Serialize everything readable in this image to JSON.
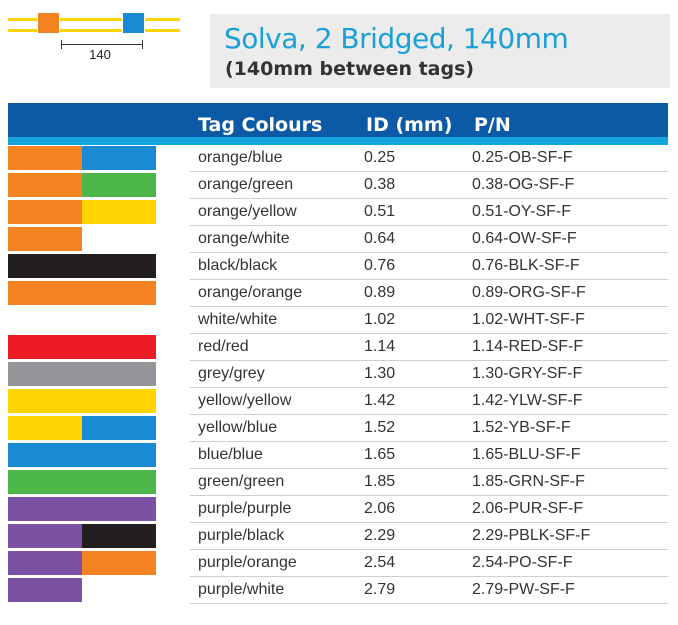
{
  "diagram": {
    "dimension_label": "140",
    "tag_colors": [
      "#f58220",
      "#1a8ad4"
    ],
    "rail_color": "#ffd400"
  },
  "title": {
    "main": "Solva, 2 Bridged, 140mm",
    "sub": "(140mm between tags)"
  },
  "table": {
    "headers": {
      "tag_colours": "Tag Colours",
      "id": "ID (mm)",
      "pn": "P/N"
    },
    "rows": [
      {
        "name": "orange/blue",
        "id": "0.25",
        "pn": "0.25-OB-SF-F",
        "c1": "#f58220",
        "c2": "#1a8ad4"
      },
      {
        "name": "orange/green",
        "id": "0.38",
        "pn": "0.38-OG-SF-F",
        "c1": "#f58220",
        "c2": "#4cb748"
      },
      {
        "name": "orange/yellow",
        "id": "0.51",
        "pn": "0.51-OY-SF-F",
        "c1": "#f58220",
        "c2": "#ffd400"
      },
      {
        "name": "orange/white",
        "id": "0.64",
        "pn": "0.64-OW-SF-F",
        "c1": "#f58220",
        "c2": "#ffffff"
      },
      {
        "name": "black/black",
        "id": "0.76",
        "pn": "0.76-BLK-SF-F",
        "c1": "#231f20",
        "c2": "#231f20"
      },
      {
        "name": "orange/orange",
        "id": "0.89",
        "pn": "0.89-ORG-SF-F",
        "c1": "#f58220",
        "c2": "#f58220"
      },
      {
        "name": "white/white",
        "id": "1.02",
        "pn": "1.02-WHT-SF-F",
        "c1": "#ffffff",
        "c2": "#ffffff"
      },
      {
        "name": "red/red",
        "id": "1.14",
        "pn": "1.14-RED-SF-F",
        "c1": "#ed1c24",
        "c2": "#ed1c24"
      },
      {
        "name": "grey/grey",
        "id": "1.30",
        "pn": "1.30-GRY-SF-F",
        "c1": "#939598",
        "c2": "#939598"
      },
      {
        "name": "yellow/yellow",
        "id": "1.42",
        "pn": "1.42-YLW-SF-F",
        "c1": "#ffd400",
        "c2": "#ffd400"
      },
      {
        "name": "yellow/blue",
        "id": "1.52",
        "pn": "1.52-YB-SF-F",
        "c1": "#ffd400",
        "c2": "#1a8ad4"
      },
      {
        "name": "blue/blue",
        "id": "1.65",
        "pn": "1.65-BLU-SF-F",
        "c1": "#1a8ad4",
        "c2": "#1a8ad4"
      },
      {
        "name": "green/green",
        "id": "1.85",
        "pn": "1.85-GRN-SF-F",
        "c1": "#4cb748",
        "c2": "#4cb748"
      },
      {
        "name": "purple/purple",
        "id": "2.06",
        "pn": "2.06-PUR-SF-F",
        "c1": "#7a52a1",
        "c2": "#7a52a1"
      },
      {
        "name": "purple/black",
        "id": "2.29",
        "pn": "2.29-PBLK-SF-F",
        "c1": "#7a52a1",
        "c2": "#231f20"
      },
      {
        "name": "purple/orange",
        "id": "2.54",
        "pn": "2.54-PO-SF-F",
        "c1": "#7a52a1",
        "c2": "#f58220"
      },
      {
        "name": "purple/white",
        "id": "2.79",
        "pn": "2.79-PW-SF-F",
        "c1": "#7a52a1",
        "c2": "#ffffff"
      }
    ]
  },
  "colors": {
    "header_bg": "#0c5aa6",
    "header_accent": "#16a4dc",
    "title_color": "#1aa0d8"
  }
}
